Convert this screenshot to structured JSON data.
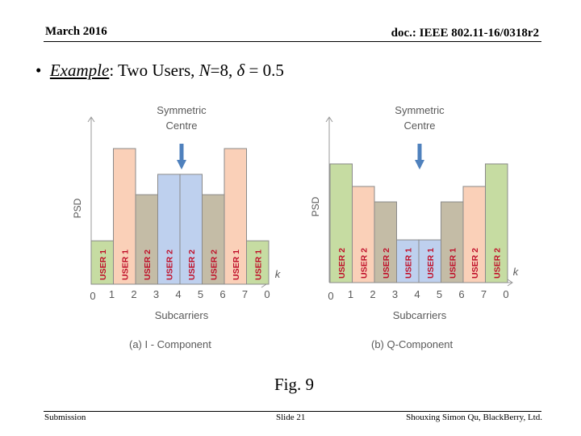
{
  "header": {
    "date": "March 2016",
    "doc_id": "doc.: IEEE 802.11-16/0318r2"
  },
  "bullet": {
    "symbol": "•",
    "example_label": "Example",
    "after_label": ": Two Users, ",
    "n_var": "N",
    "n_eq": "=8, ",
    "delta_var": "δ",
    "delta_eq": " = 0.5"
  },
  "diagram_a": {
    "center_label_line1": "Symmetric",
    "center_label_line2": "Centre",
    "y_label": "PSD",
    "k_label": "k",
    "x_title": "Subcarriers",
    "caption": "(a)  I - Component",
    "origin_label": "0",
    "ticks": [
      "1",
      "2",
      "3",
      "4",
      "5",
      "6",
      "7",
      "0"
    ],
    "bars": [
      {
        "label": "USER 1",
        "color": "#c6dca2",
        "level": 0.32
      },
      {
        "label": "USER 1",
        "color": "#fad0b8",
        "level": 1.0
      },
      {
        "label": "USER 2",
        "color": "#c4bca6",
        "level": 0.66
      },
      {
        "label": "USER 2",
        "color": "#bed0ee",
        "level": 0.81
      },
      {
        "label": "USER 2",
        "color": "#bed0ee",
        "level": 0.81
      },
      {
        "label": "USER 2",
        "color": "#c4bca6",
        "level": 0.66
      },
      {
        "label": "USER 1",
        "color": "#fad0b8",
        "level": 1.0
      },
      {
        "label": "USER 1",
        "color": "#c6dca2",
        "level": 0.32
      }
    ]
  },
  "diagram_b": {
    "center_label_line1": "Symmetric",
    "center_label_line2": "Centre",
    "y_label": "PSD",
    "k_label": "k",
    "x_title": "Subcarriers",
    "caption": "(b)  Q-Component",
    "origin_label": "0",
    "ticks": [
      "1",
      "2",
      "3",
      "4",
      "5",
      "6",
      "7",
      "0"
    ],
    "bars": [
      {
        "label": "USER 2",
        "color": "#c6dca2",
        "level": 1.0
      },
      {
        "label": "USER 2",
        "color": "#fad0b8",
        "level": 0.81
      },
      {
        "label": "USER 2",
        "color": "#c4bca6",
        "level": 0.68
      },
      {
        "label": "USER 1",
        "color": "#bed0ee",
        "level": 0.36
      },
      {
        "label": "USER 1",
        "color": "#bed0ee",
        "level": 0.36
      },
      {
        "label": "USER 1",
        "color": "#c4bca6",
        "level": 0.68
      },
      {
        "label": "USER 2",
        "color": "#fad0b8",
        "level": 0.81
      },
      {
        "label": "USER 2",
        "color": "#c6dca2",
        "level": 1.0
      }
    ]
  },
  "colors": {
    "bar_outline": "#8a8a8a",
    "bar_text": "#c0102a",
    "arrow": "#4f81bd",
    "axis": "#999999",
    "label_text": "#595959"
  },
  "figure_caption": "Fig. 9",
  "footer": {
    "left": "Submission",
    "center": "Slide 21",
    "right": "Shouxing Simon Qu, BlackBerry, Ltd."
  }
}
